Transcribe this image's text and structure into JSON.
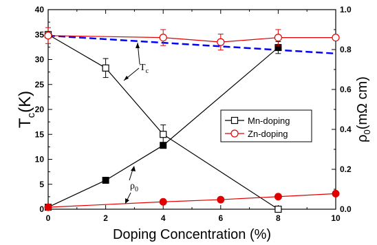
{
  "chart_data": {
    "type": "line",
    "x_axis": {
      "label": "Doping Concentration (%)",
      "range": [
        0,
        10
      ],
      "ticks": [
        "0",
        "2",
        "4",
        "6",
        "8",
        "10"
      ]
    },
    "y_left": {
      "label_main": "T",
      "label_sub": "c",
      "label_unit": "(K)",
      "range": [
        0,
        40
      ],
      "ticks": [
        "0",
        "5",
        "10",
        "15",
        "20",
        "25",
        "30",
        "35",
        "40"
      ]
    },
    "y_right": {
      "label_main": "ρ",
      "label_sub": "0",
      "label_unit": "(mΩ cm)",
      "range": [
        0,
        1.0
      ],
      "ticks": [
        "0.0",
        "0.2",
        "0.4",
        "0.6",
        "0.8",
        "1.0"
      ]
    },
    "legend": {
      "position": "right-middle",
      "entries": [
        "Mn-doping",
        "Zn-doping"
      ]
    },
    "series": [
      {
        "name": "Mn-doping",
        "quantity": "Tc",
        "axis": "left",
        "color": "#000000",
        "marker": "open-square",
        "x": [
          0,
          2,
          4,
          8
        ],
        "y": [
          35.0,
          28.3,
          15.0,
          0.0
        ],
        "err": [
          0,
          1.9,
          1.9,
          0
        ]
      },
      {
        "name": "Mn-doping",
        "quantity": "rho0",
        "axis": "right",
        "color": "#000000",
        "marker": "filled-square",
        "x": [
          0,
          2,
          4,
          8
        ],
        "y": [
          0.01,
          0.145,
          0.32,
          0.81
        ],
        "err": [
          0,
          0,
          0,
          0.03
        ]
      },
      {
        "name": "Zn-doping",
        "quantity": "Tc",
        "axis": "left",
        "color": "#e00000",
        "marker": "open-circle",
        "x": [
          0,
          4,
          6,
          8,
          10
        ],
        "y": [
          34.8,
          34.4,
          33.5,
          34.4,
          34.4
        ],
        "err": [
          1.6,
          1.6,
          1.6,
          1.6,
          0
        ]
      },
      {
        "name": "Zn-doping",
        "quantity": "rho0",
        "axis": "right",
        "color": "#e00000",
        "marker": "filled-circle",
        "x": [
          0,
          4,
          6,
          8,
          10
        ],
        "y": [
          0.01,
          0.037,
          0.048,
          0.063,
          0.078
        ],
        "err": [
          0,
          0,
          0,
          0,
          0
        ]
      }
    ],
    "trend_line": {
      "axis": "left",
      "color": "#0000ff",
      "style": "dashed",
      "x": [
        0,
        10
      ],
      "y": [
        34.8,
        31.2
      ]
    },
    "annotations": [
      {
        "main": "T",
        "sub": "c"
      },
      {
        "main": "ρ",
        "sub": "0"
      }
    ]
  }
}
